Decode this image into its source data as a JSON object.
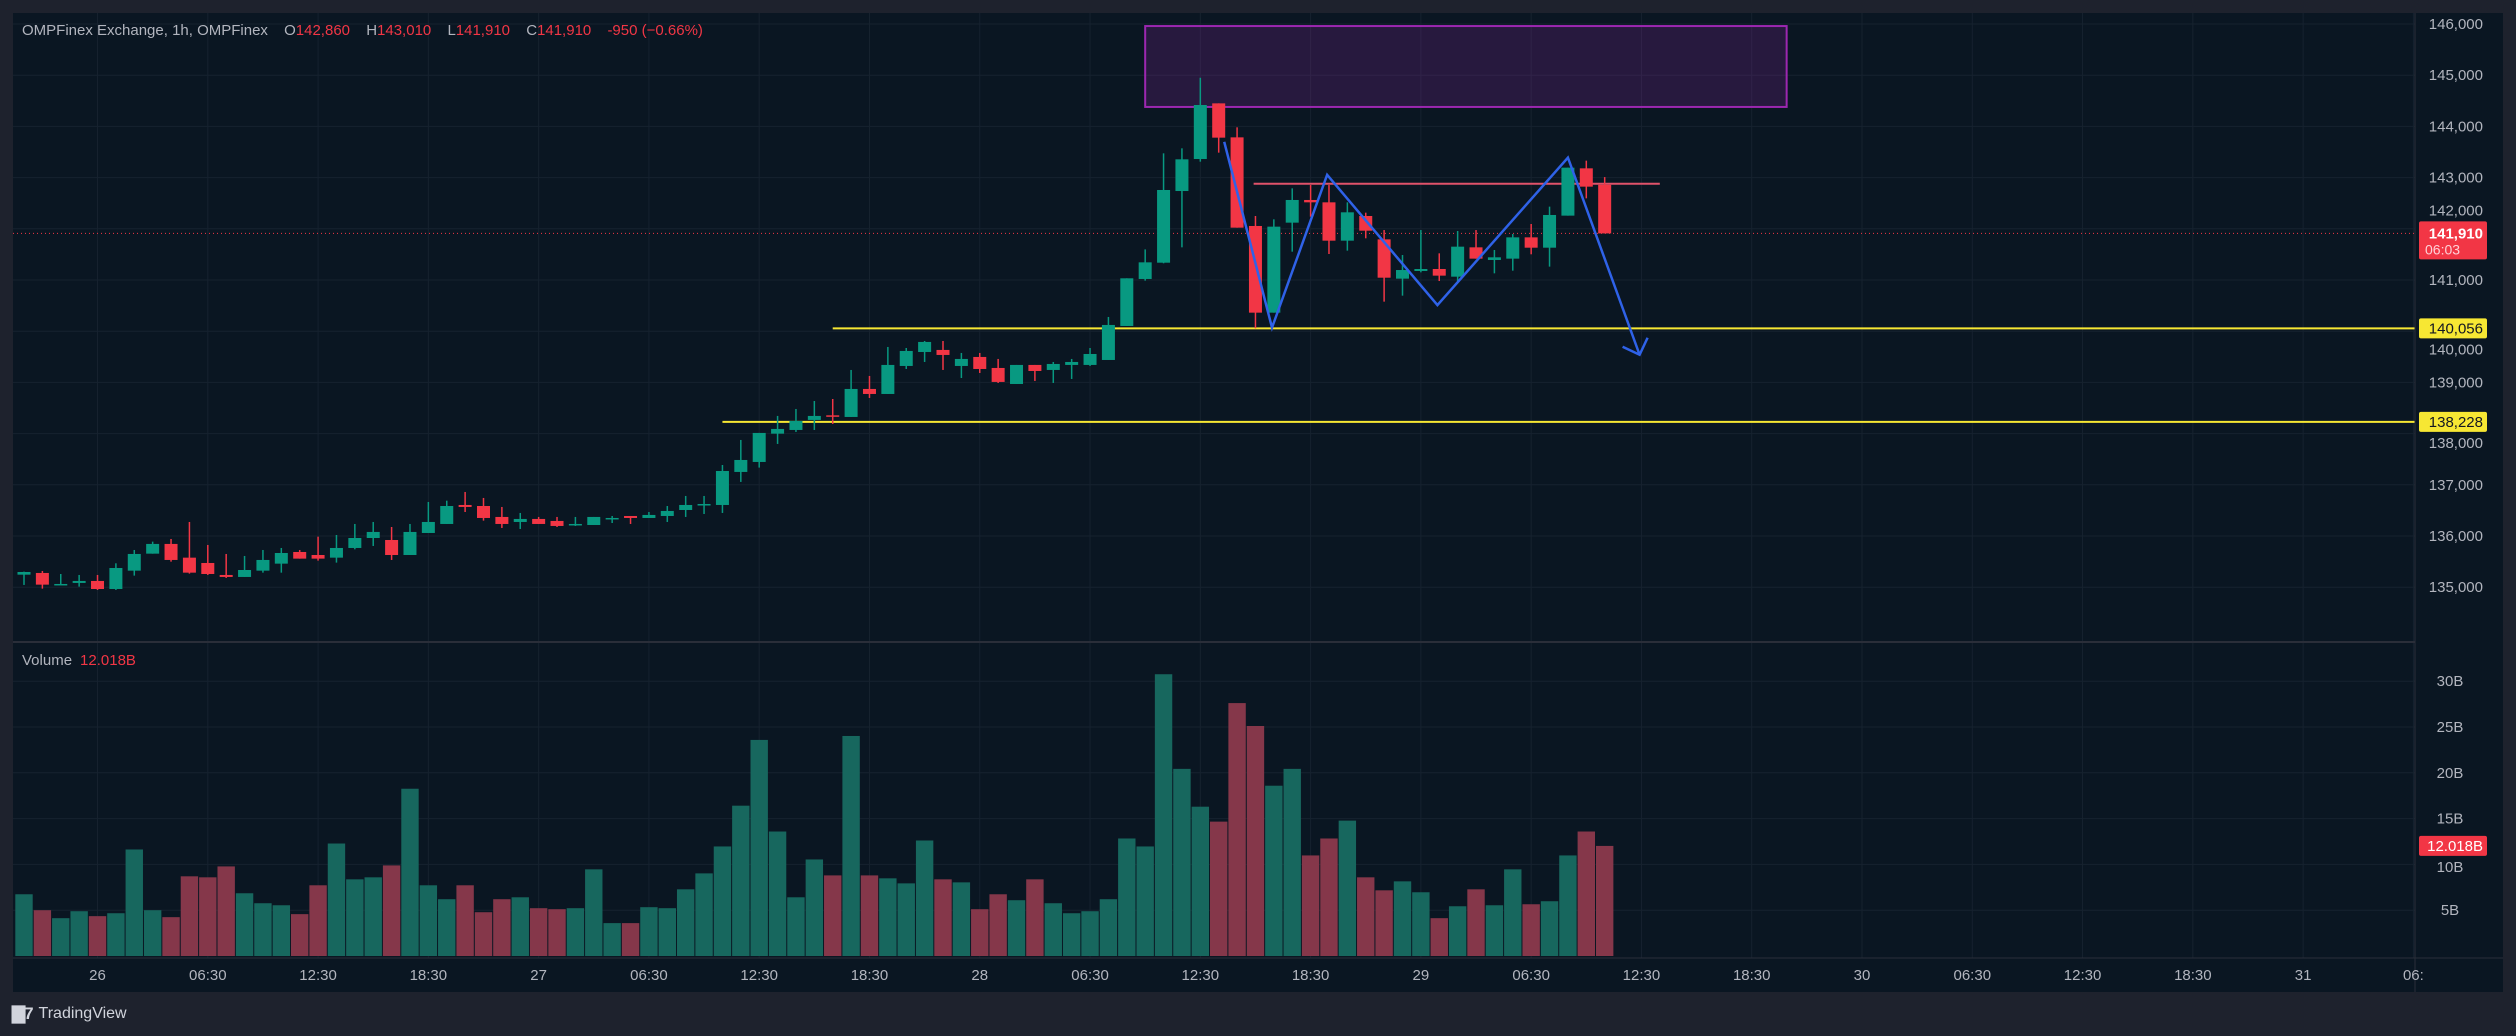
{
  "header": {
    "symbol": "OMPFinex Exchange, 1h, OMPFinex",
    "open_label": "O",
    "open": "142,860",
    "high_label": "H",
    "high": "143,010",
    "low_label": "L",
    "low": "141,910",
    "close_label": "C",
    "close": "141,910",
    "change": "-950 (−0.66%)"
  },
  "volume_pane": {
    "label": "Volume",
    "value": "12.018B"
  },
  "footer": {
    "brand": "TradingView",
    "logo_icon": "tradingview-logo-icon"
  },
  "colors": {
    "up": "#089981",
    "down": "#f23645",
    "vol_up": "#17675e",
    "vol_down": "#85374a",
    "level": "#f7e733",
    "zigzag": "#2f62e8",
    "box": "#9c27b0",
    "resistance": "#e0526a"
  },
  "price_axis": {
    "ticks": [
      "146,000",
      "145,000",
      "144,000",
      "143,000",
      "142,000",
      "141,000",
      "140,000",
      "139,000",
      "138,000",
      "137,000",
      "136,000",
      "135,000"
    ],
    "tick_values": [
      146000,
      145000,
      144000,
      143000,
      142000,
      141000,
      140000,
      139000,
      138000,
      137000,
      136000,
      135000
    ],
    "current_price": "141,910",
    "current_price_value": 141910,
    "countdown": "06:03",
    "levels": [
      {
        "label": "140,056",
        "value": 140056,
        "start_index": 44
      },
      {
        "label": "138,228",
        "value": 138228,
        "start_index": 38
      }
    ]
  },
  "volume_axis": {
    "ticks": [
      "30B",
      "25B",
      "20B",
      "15B",
      "10B",
      "5B"
    ],
    "tick_values": [
      30,
      25,
      20,
      15,
      10,
      5
    ],
    "current": "12.018B",
    "current_value": 12.018
  },
  "time_axis": {
    "first_label_index": 4,
    "step": 6,
    "labels": [
      "26",
      "06:30",
      "12:30",
      "18:30",
      "27",
      "06:30",
      "12:30",
      "18:30",
      "28",
      "06:30",
      "12:30",
      "18:30",
      "29",
      "06:30",
      "12:30",
      "18:30",
      "30",
      "06:30",
      "12:30",
      "18:30",
      "31",
      "06:"
    ]
  },
  "drawings": {
    "box": {
      "from_index": 61,
      "to_index": 95.9,
      "top": 145960,
      "bottom": 144380
    },
    "resistance_line": {
      "from_index": 66.9,
      "to_index": 89,
      "price": 142880
    },
    "zigzag": [
      [
        65.3,
        143700
      ],
      [
        67.9,
        140070
      ],
      [
        70.9,
        143055
      ],
      [
        76.9,
        140510
      ],
      [
        84,
        143390
      ],
      [
        87.9,
        139540
      ]
    ]
  },
  "chart_data": {
    "type": "candlestick",
    "title": "OMPFinex Exchange, 1h",
    "ylim": [
      134500,
      146300
    ],
    "ohlc": [
      [
        135245,
        135304,
        135044,
        135297
      ],
      [
        135278,
        135317,
        134972,
        135050
      ],
      [
        135050,
        135258,
        135050,
        135063
      ],
      [
        135083,
        135239,
        135011,
        135122
      ],
      [
        135122,
        135239,
        134946,
        134965
      ],
      [
        134965,
        135467,
        134946,
        135375
      ],
      [
        135323,
        135727,
        135226,
        135649
      ],
      [
        135655,
        135890,
        135655,
        135845
      ],
      [
        135845,
        135942,
        135499,
        135532
      ],
      [
        135577,
        136274,
        135265,
        135284
      ],
      [
        135473,
        135825,
        135239,
        135258
      ],
      [
        135239,
        135649,
        135180,
        135200
      ],
      [
        135200,
        135610,
        135200,
        135336
      ],
      [
        135323,
        135727,
        135284,
        135532
      ],
      [
        135460,
        135766,
        135284,
        135668
      ],
      [
        135688,
        135727,
        135558,
        135558
      ],
      [
        135629,
        135987,
        135519,
        135558
      ],
      [
        135577,
        136020,
        135480,
        135766
      ],
      [
        135766,
        136235,
        135740,
        135961
      ],
      [
        135961,
        136274,
        135805,
        136079
      ],
      [
        135922,
        136176,
        135532,
        135629
      ],
      [
        135629,
        136235,
        135629,
        136079
      ],
      [
        136059,
        136665,
        136059,
        136274
      ],
      [
        136235,
        136690,
        136235,
        136586
      ],
      [
        136606,
        136860,
        136469,
        136567
      ],
      [
        136586,
        136743,
        136300,
        136352
      ],
      [
        136372,
        136567,
        136157,
        136235
      ],
      [
        136274,
        136450,
        136137,
        136333
      ],
      [
        136333,
        136372,
        136235,
        136235
      ],
      [
        136294,
        136372,
        136176,
        136196
      ],
      [
        136222,
        136372,
        136196,
        136235
      ],
      [
        136215,
        136372,
        136215,
        136372
      ],
      [
        136339,
        136391,
        136254,
        136352
      ],
      [
        136391,
        136391,
        136235,
        136352
      ],
      [
        136352,
        136469,
        136352,
        136411
      ],
      [
        136391,
        136586,
        136274,
        136489
      ],
      [
        136508,
        136782,
        136372,
        136606
      ],
      [
        136606,
        136782,
        136430,
        136625
      ],
      [
        136606,
        137387,
        136450,
        137270
      ],
      [
        137251,
        137876,
        137056,
        137485
      ],
      [
        137446,
        138013,
        137336,
        138013
      ],
      [
        137999,
        138345,
        137798,
        138091
      ],
      [
        138071,
        138481,
        138032,
        138247
      ],
      [
        138267,
        138637,
        138071,
        138345
      ],
      [
        138357,
        138676,
        138188,
        138345
      ],
      [
        138325,
        139243,
        138325,
        138872
      ],
      [
        138872,
        139126,
        138696,
        138774
      ],
      [
        138774,
        139692,
        138774,
        139341
      ],
      [
        139321,
        139672,
        139262,
        139614
      ],
      [
        139594,
        139809,
        139399,
        139790
      ],
      [
        139634,
        139809,
        139243,
        139536
      ],
      [
        139321,
        139575,
        139086,
        139458
      ],
      [
        139497,
        139575,
        139184,
        139262
      ],
      [
        139282,
        139458,
        138989,
        139009
      ],
      [
        138969,
        139341,
        138969,
        139341
      ],
      [
        139341,
        139341,
        139028,
        139223
      ],
      [
        139243,
        139399,
        138989,
        139360
      ],
      [
        139341,
        139458,
        139067,
        139399
      ],
      [
        139341,
        139672,
        139321,
        139555
      ],
      [
        139438,
        140278,
        139438,
        140122
      ],
      [
        140102,
        141033,
        140102,
        141033
      ],
      [
        141020,
        141598,
        140987,
        141345
      ],
      [
        141338,
        143474,
        141326,
        142758
      ],
      [
        142738,
        143572,
        141638,
        143357
      ],
      [
        143363,
        144950,
        143311,
        144418
      ],
      [
        144450,
        144450,
        143487,
        143780
      ],
      [
        143786,
        143982,
        142022,
        142022
      ],
      [
        142055,
        142250,
        140056,
        140362
      ],
      [
        140362,
        142185,
        140362,
        142042
      ],
      [
        142120,
        142790,
        141553,
        142563
      ],
      [
        142563,
        142855,
        142237,
        142517
      ],
      [
        142517,
        142855,
        141508,
        141768
      ],
      [
        141768,
        142517,
        141573,
        142322
      ],
      [
        142250,
        142315,
        141814,
        141963
      ],
      [
        141794,
        141976,
        140577,
        141045
      ],
      [
        141026,
        141488,
        140694,
        141195
      ],
      [
        141176,
        141976,
        141150,
        141215
      ],
      [
        141215,
        141521,
        140980,
        141085
      ],
      [
        141065,
        141957,
        140980,
        141651
      ],
      [
        141638,
        141976,
        141417,
        141417
      ],
      [
        141391,
        141586,
        141130,
        141443
      ],
      [
        141417,
        141898,
        141182,
        141833
      ],
      [
        141833,
        142094,
        141502,
        141631
      ],
      [
        141631,
        142433,
        141261,
        142270
      ],
      [
        142257,
        143194,
        142257,
        143194
      ],
      [
        143181,
        143331,
        142595,
        142823
      ],
      [
        142860,
        143010,
        141910,
        141910
      ]
    ],
    "volume_billions": [
      6.74,
      5.0,
      4.13,
      4.89,
      4.35,
      4.67,
      11.63,
      5.0,
      4.24,
      8.7,
      8.59,
      9.78,
      6.85,
      5.76,
      5.54,
      4.57,
      7.72,
      12.28,
      8.37,
      8.59,
      9.89,
      18.26,
      7.72,
      6.2,
      7.72,
      4.78,
      6.2,
      6.41,
      5.22,
      5.11,
      5.22,
      9.46,
      3.59,
      3.59,
      5.33,
      5.22,
      7.28,
      9.02,
      11.96,
      16.41,
      23.59,
      13.59,
      6.41,
      10.54,
      8.8,
      24.02,
      8.8,
      8.48,
      7.93,
      12.61,
      8.37,
      8.04,
      5.11,
      6.74,
      6.09,
      8.37,
      5.76,
      4.67,
      4.89,
      6.2,
      12.83,
      11.96,
      30.76,
      20.43,
      16.3,
      14.67,
      27.61,
      25.11,
      18.59,
      20.43,
      10.98,
      12.83,
      14.78,
      8.59,
      7.17,
      8.15,
      6.96,
      4.13,
      5.43,
      7.28,
      5.54,
      9.46,
      5.65,
      5.98,
      10.98,
      13.59,
      12.018
    ],
    "volume_ylim": [
      0,
      32
    ]
  }
}
